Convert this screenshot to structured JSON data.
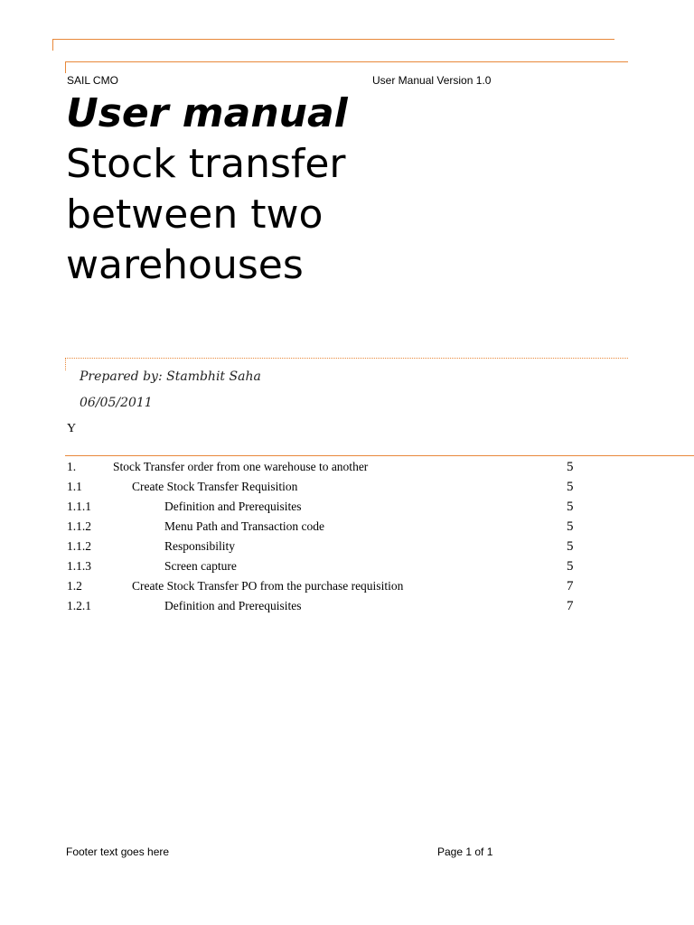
{
  "header": {
    "left": "SAIL CMO",
    "right": "User Manual Version 1.0"
  },
  "title": "User manual",
  "subtitle_lines": [
    "Stock transfer",
    "between two",
    "warehouses"
  ],
  "prepared_by": "Prepared by: Stambhit Saha",
  "date": "06/05/2011",
  "stray_char": "Y",
  "toc": [
    {
      "num": "1.",
      "level": 1,
      "text": "Stock Transfer order from one warehouse to another",
      "page": "5"
    },
    {
      "num": "1.1",
      "level": 2,
      "text": "Create Stock Transfer Requisition",
      "page": "5"
    },
    {
      "num": "1.1.1",
      "level": 3,
      "text": "Definition and Prerequisites",
      "page": "5"
    },
    {
      "num": "1.1.2",
      "level": 3,
      "text": "Menu Path and Transaction code",
      "page": "5"
    },
    {
      "num": "1.1.2",
      "level": 3,
      "text": "Responsibility",
      "page": "5"
    },
    {
      "num": "1.1.3",
      "level": 3,
      "text": "Screen capture",
      "page": "5"
    },
    {
      "num": "1.2",
      "level": 2,
      "text": "Create Stock Transfer PO from the purchase requisition",
      "page": "7"
    },
    {
      "num": "1.2.1",
      "level": 3,
      "text": "Definition and Prerequisites",
      "page": "7"
    }
  ],
  "footer": {
    "left": "Footer text goes here",
    "right": "Page 1 of 1"
  },
  "colors": {
    "accent": "#e8883a"
  }
}
